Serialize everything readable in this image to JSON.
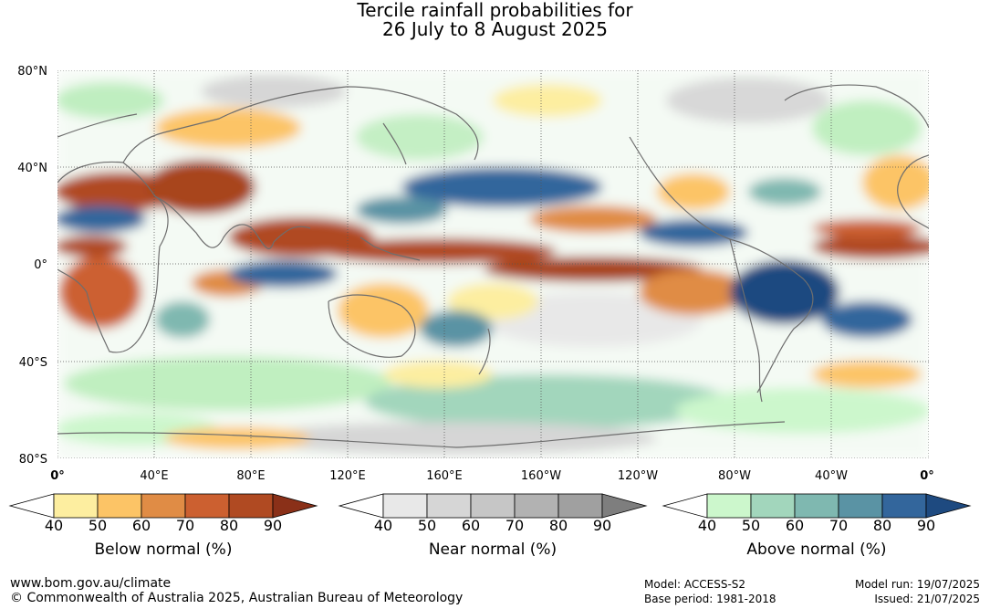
{
  "title_line1": "Tercile rainfall probabilities for",
  "title_line2": "26 July to 8 August 2025",
  "lat_labels": [
    "80°N",
    "40°N",
    "0°",
    "40°S",
    "80°S"
  ],
  "lon_labels": [
    "0°",
    "40°E",
    "80°E",
    "120°E",
    "160°E",
    "160°W",
    "120°W",
    "80°W",
    "40°W",
    "0°"
  ],
  "legends": {
    "below": {
      "title": "Below normal (%)",
      "ticks": [
        "40",
        "50",
        "60",
        "70",
        "80",
        "90"
      ],
      "colors": [
        "#ffffff",
        "#fdeea0",
        "#fcc466",
        "#e08c45",
        "#cc6030",
        "#b04a22",
        "#8a3018"
      ]
    },
    "near": {
      "title": "Near normal (%)",
      "ticks": [
        "40",
        "50",
        "60",
        "70",
        "80",
        "90"
      ],
      "colors": [
        "#ffffff",
        "#e8e8e8",
        "#d6d6d6",
        "#c6c6c6",
        "#b2b2b2",
        "#a0a0a0",
        "#7e7e7e"
      ]
    },
    "above": {
      "title": "Above normal (%)",
      "ticks": [
        "40",
        "50",
        "60",
        "70",
        "80",
        "90"
      ],
      "colors": [
        "#ffffff",
        "#ccf7cc",
        "#a2d6bc",
        "#7fb8b0",
        "#5a93a4",
        "#33669c",
        "#1e4a80"
      ]
    }
  },
  "footer": {
    "website": "www.bom.gov.au/climate",
    "copyright": "© Commonwealth of Australia 2025, Australian Bureau of Meteorology",
    "model": "Model: ACCESS-S2",
    "base_period": "Base period: 1981-2018",
    "model_run": "Model run: 19/07/2025",
    "issued": "Issued: 21/07/2025"
  }
}
